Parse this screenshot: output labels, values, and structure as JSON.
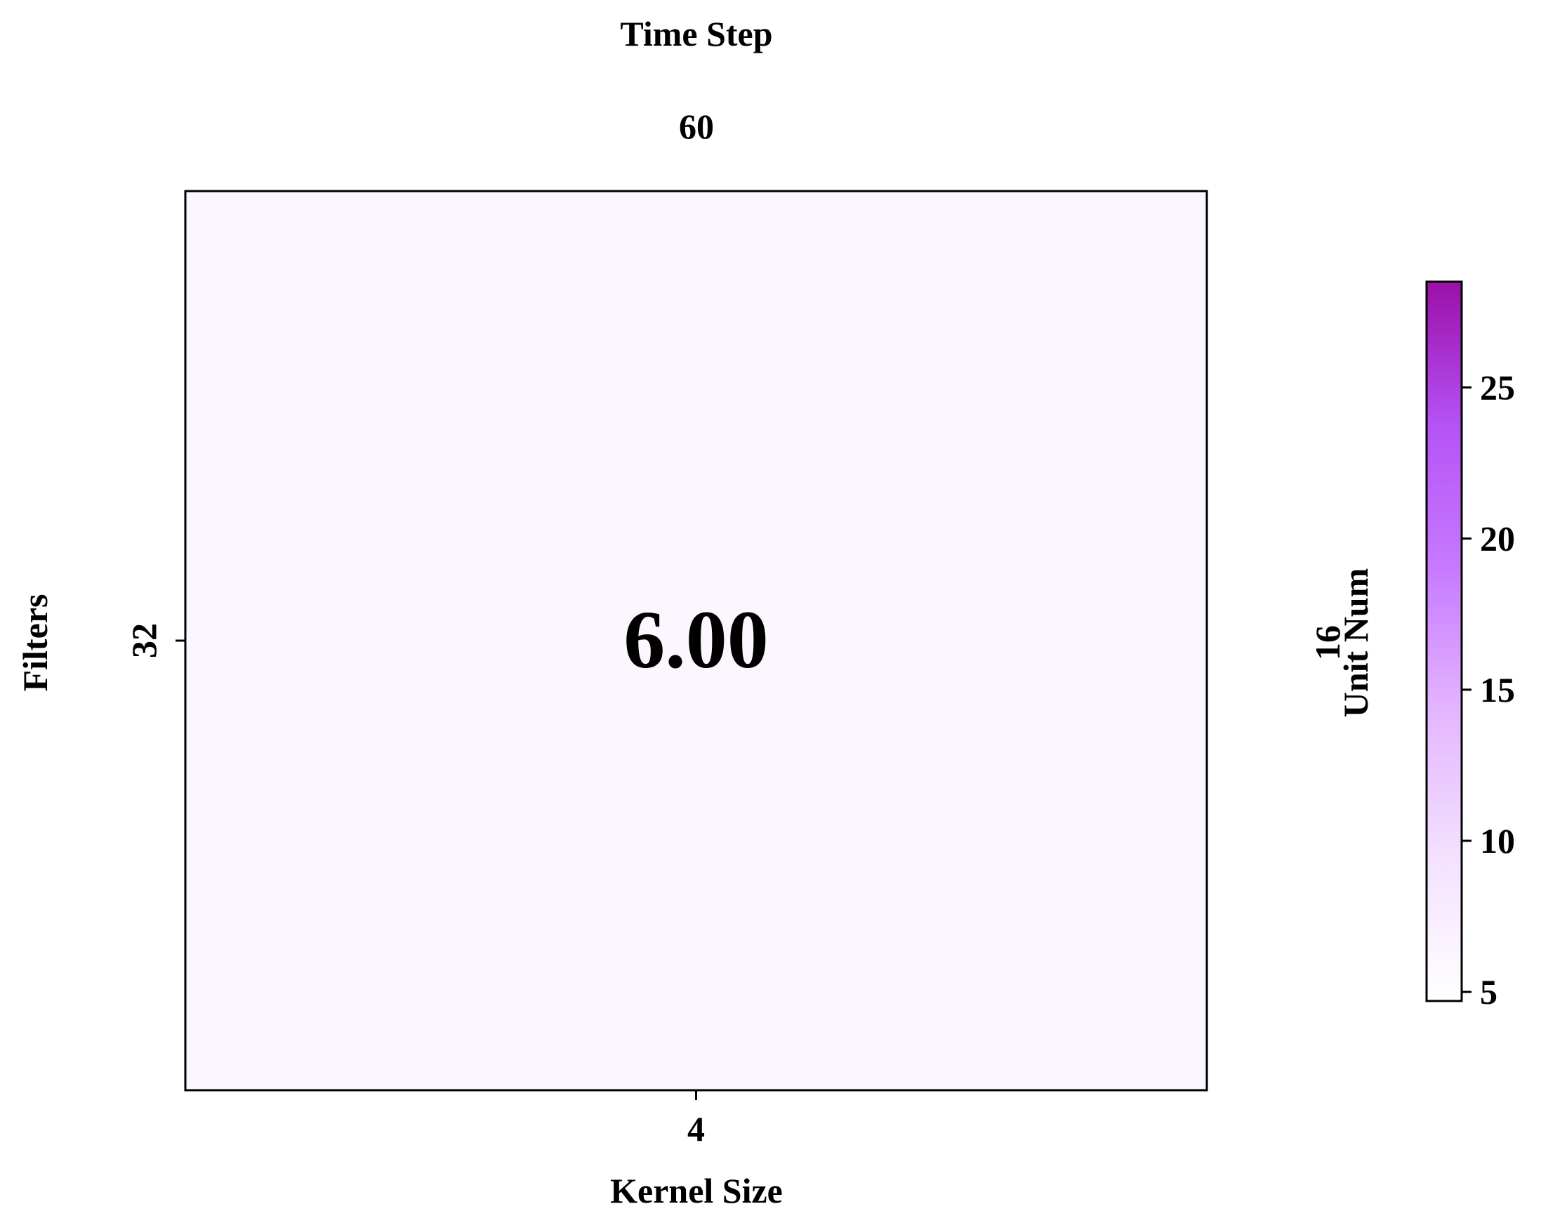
{
  "chart_data": {
    "type": "heatmap",
    "top_title": "Time Step",
    "top_value": "60",
    "xlabel": "Kernel Size",
    "ylabel": "Filters",
    "right_label": "Unit Num",
    "right_value": "16",
    "x_categories": [
      "4"
    ],
    "y_categories": [
      "32"
    ],
    "values": [
      [
        6.0
      ]
    ],
    "cell_labels": [
      [
        "6.00"
      ]
    ],
    "colorbar": {
      "vmin": 4.7,
      "vmax": 28.5,
      "ticks": [
        5,
        10,
        15,
        20,
        25
      ],
      "tick_labels": [
        "5",
        "10",
        "15",
        "20",
        "25"
      ],
      "colors": [
        "#ffffff",
        "#f3e1ff",
        "#e4b6ff",
        "#c77aff",
        "#b553f5",
        "#9b0fa8"
      ]
    },
    "grid": false,
    "legend": "none"
  }
}
